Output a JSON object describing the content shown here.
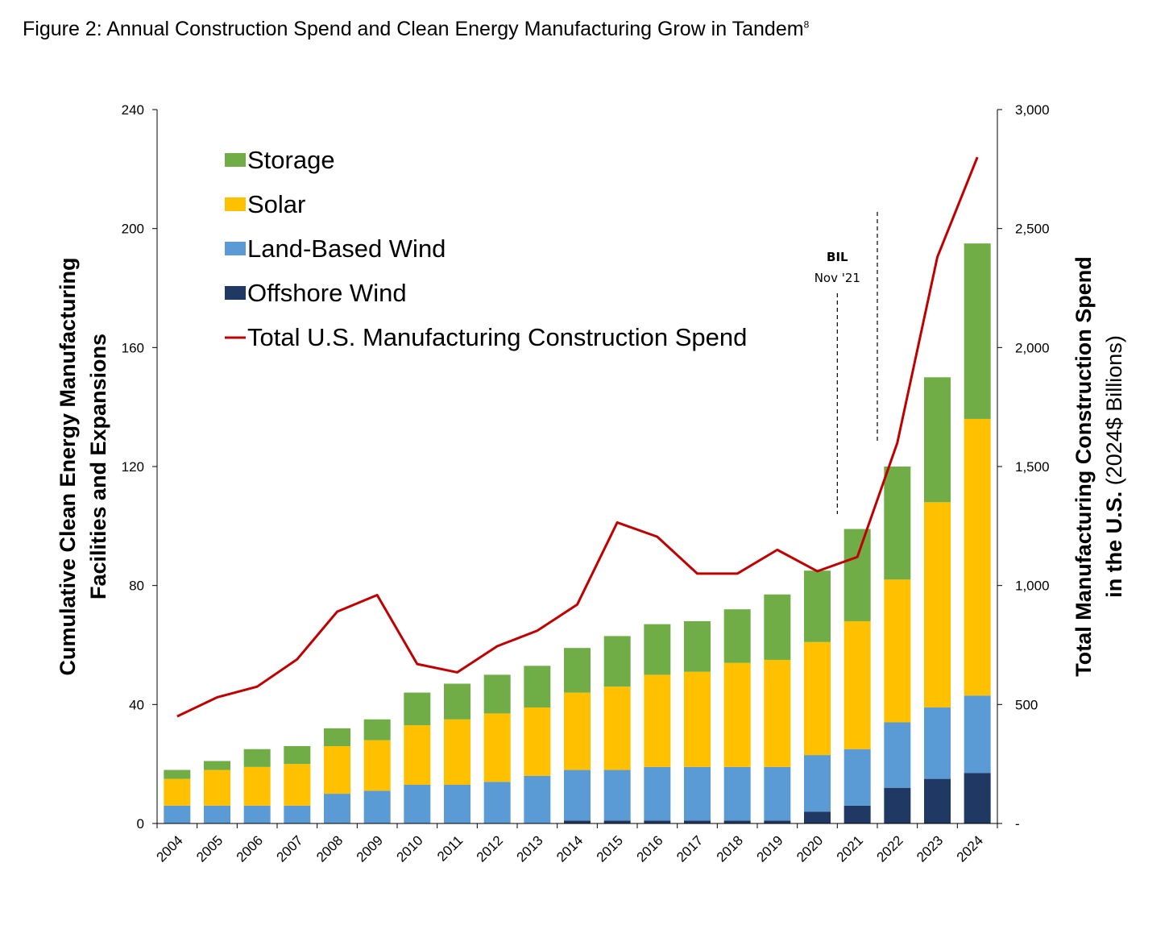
{
  "figure": {
    "title": "Figure 2: Annual Construction Spend and Clean Energy Manufacturing Grow in Tandem",
    "footnote_ref": "8"
  },
  "chart_data": {
    "type": "bar",
    "stacked": true,
    "categories": [
      "2004",
      "2005",
      "2006",
      "2007",
      "2008",
      "2009",
      "2010",
      "2011",
      "2012",
      "2013",
      "2014",
      "2015",
      "2016",
      "2017",
      "2018",
      "2019",
      "2020",
      "2021",
      "2022",
      "2023",
      "2024"
    ],
    "series": [
      {
        "name": "Offshore Wind",
        "color": "#1f3864",
        "values": [
          0,
          0,
          0,
          0,
          0,
          0,
          0,
          0,
          0,
          0,
          1,
          1,
          1,
          1,
          1,
          1,
          4,
          6,
          12,
          15,
          17
        ]
      },
      {
        "name": "Land-Based Wind",
        "color": "#5b9bd5",
        "values": [
          6,
          6,
          6,
          6,
          10,
          11,
          13,
          13,
          14,
          16,
          17,
          17,
          18,
          18,
          18,
          18,
          19,
          19,
          22,
          24,
          26
        ]
      },
      {
        "name": "Solar",
        "color": "#ffc000",
        "values": [
          9,
          12,
          13,
          14,
          16,
          17,
          20,
          22,
          23,
          23,
          26,
          28,
          31,
          32,
          35,
          36,
          38,
          43,
          48,
          69,
          93
        ]
      },
      {
        "name": "Storage",
        "color": "#70ad47",
        "values": [
          3,
          3,
          6,
          6,
          6,
          7,
          11,
          12,
          13,
          14,
          15,
          17,
          17,
          17,
          18,
          22,
          24,
          31,
          38,
          42,
          59
        ]
      }
    ],
    "line_series": {
      "name": "Total U.S. Manufacturing Construction Spend",
      "color": "#c00000",
      "axis": "right",
      "values": [
        450,
        530,
        575,
        690,
        890,
        960,
        670,
        635,
        745,
        810,
        920,
        1265,
        1205,
        1050,
        1050,
        1150,
        1060,
        1120,
        1600,
        2380,
        2800
      ]
    },
    "ylabel_left": "Cumulative Clean Energy Manufacturing Facilities and Expansions",
    "ylabel_left_lines": [
      "Cumulative Clean Energy Manufacturing",
      "Facilities and Expansions"
    ],
    "ylabel_right_line1": "Total Manufacturing Construction Spend",
    "ylabel_right_line2_bold": "in the U.S.",
    "ylabel_right_line2_normal": " (2024$ Billions)",
    "ylim_left": [
      0,
      240
    ],
    "yticks_left": [
      "0",
      "40",
      "80",
      "120",
      "160",
      "200",
      "240"
    ],
    "ylim_right": [
      0,
      3000
    ],
    "yticks_right": [
      "-",
      "500",
      "1,000",
      "1,500",
      "2,000",
      "2,500",
      "3,000"
    ],
    "legend_order": [
      "Storage",
      "Solar",
      "Land-Based Wind",
      "Offshore Wind",
      "Total U.S. Manufacturing Construction Spend"
    ],
    "legend_position": "top-left",
    "grid": false,
    "annotations": [
      {
        "lines": [
          "BIL",
          "Nov '21"
        ],
        "x_between": [
          "2020",
          "2021"
        ]
      },
      {
        "lines": [],
        "x_between": [
          "2021",
          "2022"
        ]
      }
    ]
  }
}
